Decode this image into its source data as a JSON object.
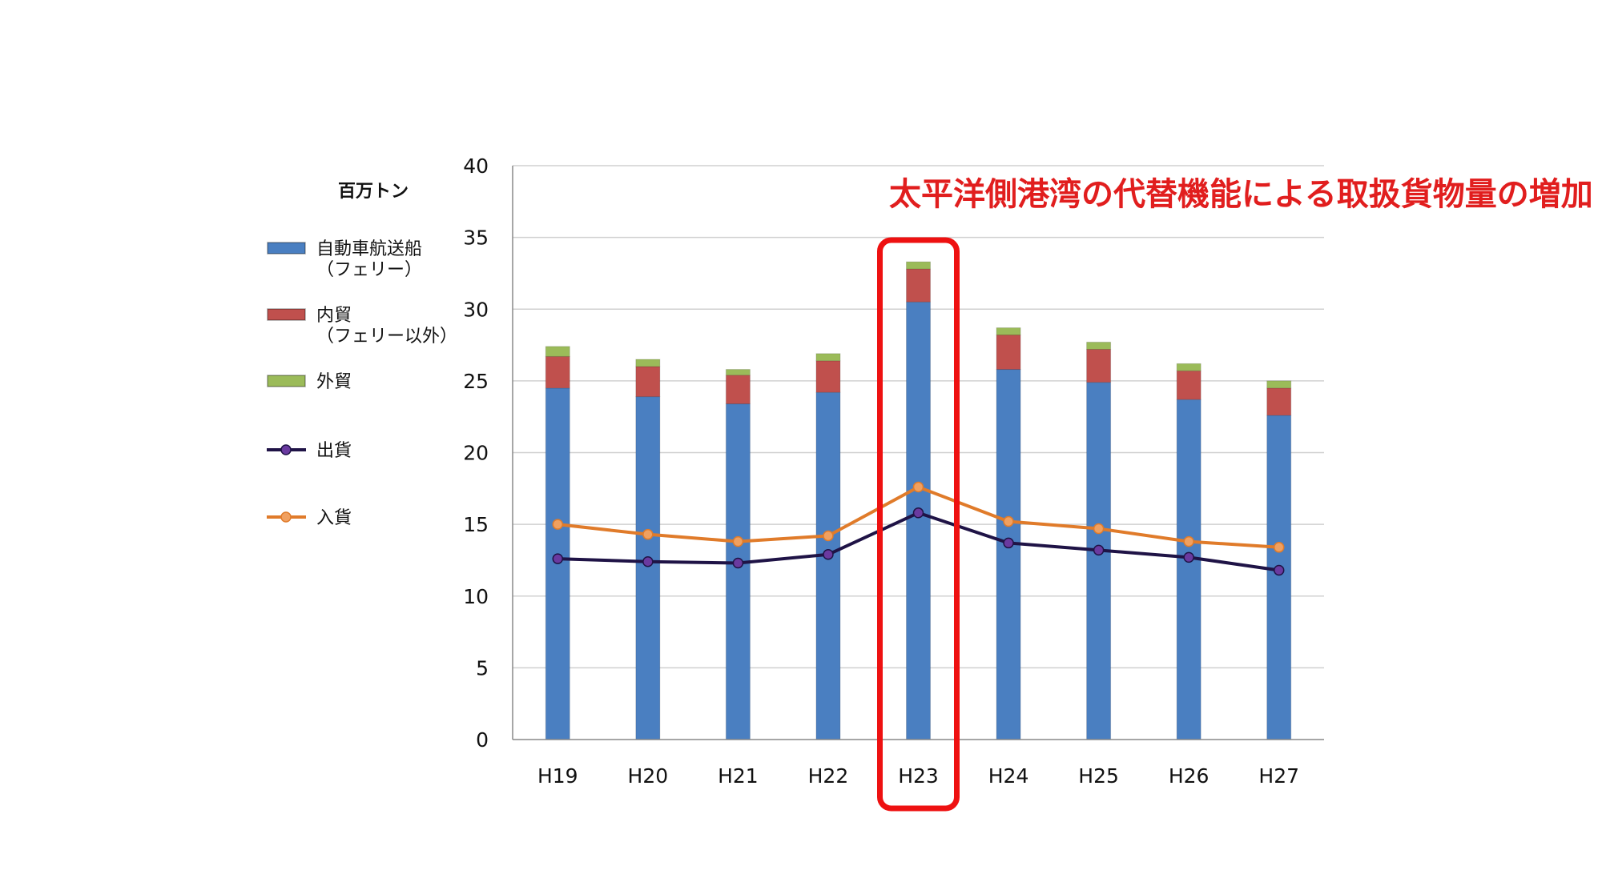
{
  "chart_data": {
    "type": "bar",
    "unit_label": "百万トン",
    "annotation": "太平洋側港湾の代替機能による取扱貨物量の増加",
    "highlight_category": "H23",
    "categories": [
      "H19",
      "H20",
      "H21",
      "H22",
      "H23",
      "H24",
      "H25",
      "H26",
      "H27"
    ],
    "ylim": [
      0,
      40
    ],
    "yticks": [
      0,
      5,
      10,
      15,
      20,
      25,
      30,
      35,
      40
    ],
    "grid": true,
    "legend_position": "left",
    "bar_series": [
      {
        "name": "自動車航送船",
        "name_line2": "（フェリー）",
        "color": "#4a7fc1",
        "values": [
          24.5,
          23.9,
          23.4,
          24.2,
          30.5,
          25.8,
          24.9,
          23.7,
          22.6
        ]
      },
      {
        "name": "内貿",
        "name_line2": "（フェリー以外）",
        "color": "#c0504d",
        "values": [
          2.2,
          2.1,
          2.0,
          2.2,
          2.3,
          2.4,
          2.3,
          2.0,
          1.9
        ]
      },
      {
        "name": "外貿",
        "name_line2": "",
        "color": "#9bbb59",
        "values": [
          0.7,
          0.5,
          0.4,
          0.5,
          0.5,
          0.5,
          0.5,
          0.5,
          0.5
        ]
      }
    ],
    "line_series": [
      {
        "name": "出貨",
        "color": "#1f1346",
        "marker_color": "#6a3aa0",
        "values": [
          12.6,
          12.4,
          12.3,
          12.9,
          15.8,
          13.7,
          13.2,
          12.7,
          11.8
        ]
      },
      {
        "name": "入貨",
        "color": "#e07b2a",
        "marker_color": "#f0a060",
        "values": [
          15.0,
          14.3,
          13.8,
          14.2,
          17.6,
          15.2,
          14.7,
          13.8,
          13.4
        ]
      }
    ],
    "colors": {
      "highlight_box": "#ee1111",
      "annotation": "#e11e1e",
      "grid": "#d0d0d0"
    }
  }
}
